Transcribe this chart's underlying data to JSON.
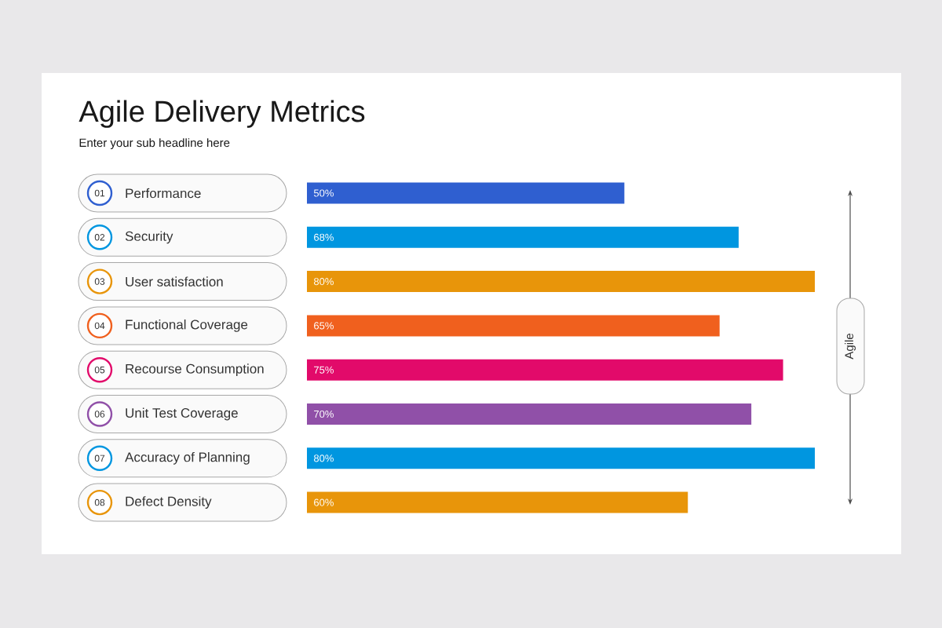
{
  "chart_data": {
    "type": "bar",
    "orientation": "horizontal",
    "title": "Agile Delivery Metrics",
    "subtitle": "Enter your sub headline here",
    "categories": [
      "Performance",
      "Security",
      "User satisfaction",
      "Functional Coverage",
      "Recourse Consumption",
      "Unit Test Coverage",
      "Accuracy of Planning",
      "Defect Density"
    ],
    "values": [
      50,
      68,
      80,
      65,
      75,
      70,
      80,
      60
    ],
    "value_labels": [
      "50%",
      "68%",
      "80%",
      "65%",
      "75%",
      "70%",
      "80%",
      "60%"
    ],
    "colors": [
      "#2f5fd0",
      "#0096e0",
      "#e8950a",
      "#f0601e",
      "#e20a6a",
      "#9050a8",
      "#0096e0",
      "#e8950a"
    ],
    "tick_labels": "y",
    "annotations": [
      "01",
      "02",
      "03",
      "04",
      "05",
      "06",
      "07",
      "08",
      "Agile"
    ]
  }
}
